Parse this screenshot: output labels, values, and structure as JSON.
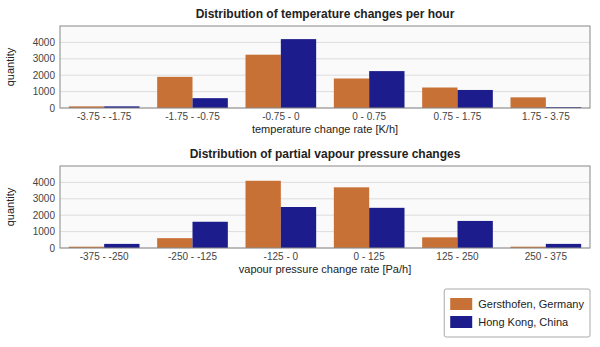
{
  "chart_data": [
    {
      "type": "bar",
      "title": "Distribution of temperature changes per hour",
      "x_label": "temperature change rate [K/h]",
      "y_label": "quantity",
      "categories": [
        "-3.75 - -1.75",
        "-1.75 - -0.75",
        "-0.75 - 0",
        "0 - 0.75",
        "0.75 - 1.75",
        "1.75 - 3.75"
      ],
      "series": [
        {
          "name": "Gersthofen, Germany",
          "color": "#C87137",
          "values": [
            100,
            1900,
            3250,
            1800,
            1250,
            650
          ]
        },
        {
          "name": "Hong Kong, China",
          "color": "#1C1C8C",
          "values": [
            100,
            600,
            4200,
            2250,
            1100,
            50
          ]
        }
      ],
      "ylim": [
        0,
        5000
      ],
      "yticks": [
        0,
        1000,
        2000,
        3000,
        4000
      ],
      "grid": true
    },
    {
      "type": "bar",
      "title": "Distribution of partial vapour pressure changes",
      "x_label": "vapour pressure change rate [Pa/h]",
      "y_label": "quantity",
      "categories": [
        "-375 - -250",
        "-250 - -125",
        "-125 - 0",
        "0 - 125",
        "125 - 250",
        "250 - 375"
      ],
      "series": [
        {
          "name": "Gersthofen, Germany",
          "color": "#C87137",
          "values": [
            80,
            600,
            4100,
            3700,
            650,
            80
          ]
        },
        {
          "name": "Hong Kong, China",
          "color": "#1C1C8C",
          "values": [
            250,
            1600,
            2500,
            2450,
            1650,
            250
          ]
        }
      ],
      "ylim": [
        0,
        5000
      ],
      "yticks": [
        0,
        1000,
        2000,
        3000,
        4000
      ],
      "grid": true,
      "legend": "lower right"
    }
  ]
}
